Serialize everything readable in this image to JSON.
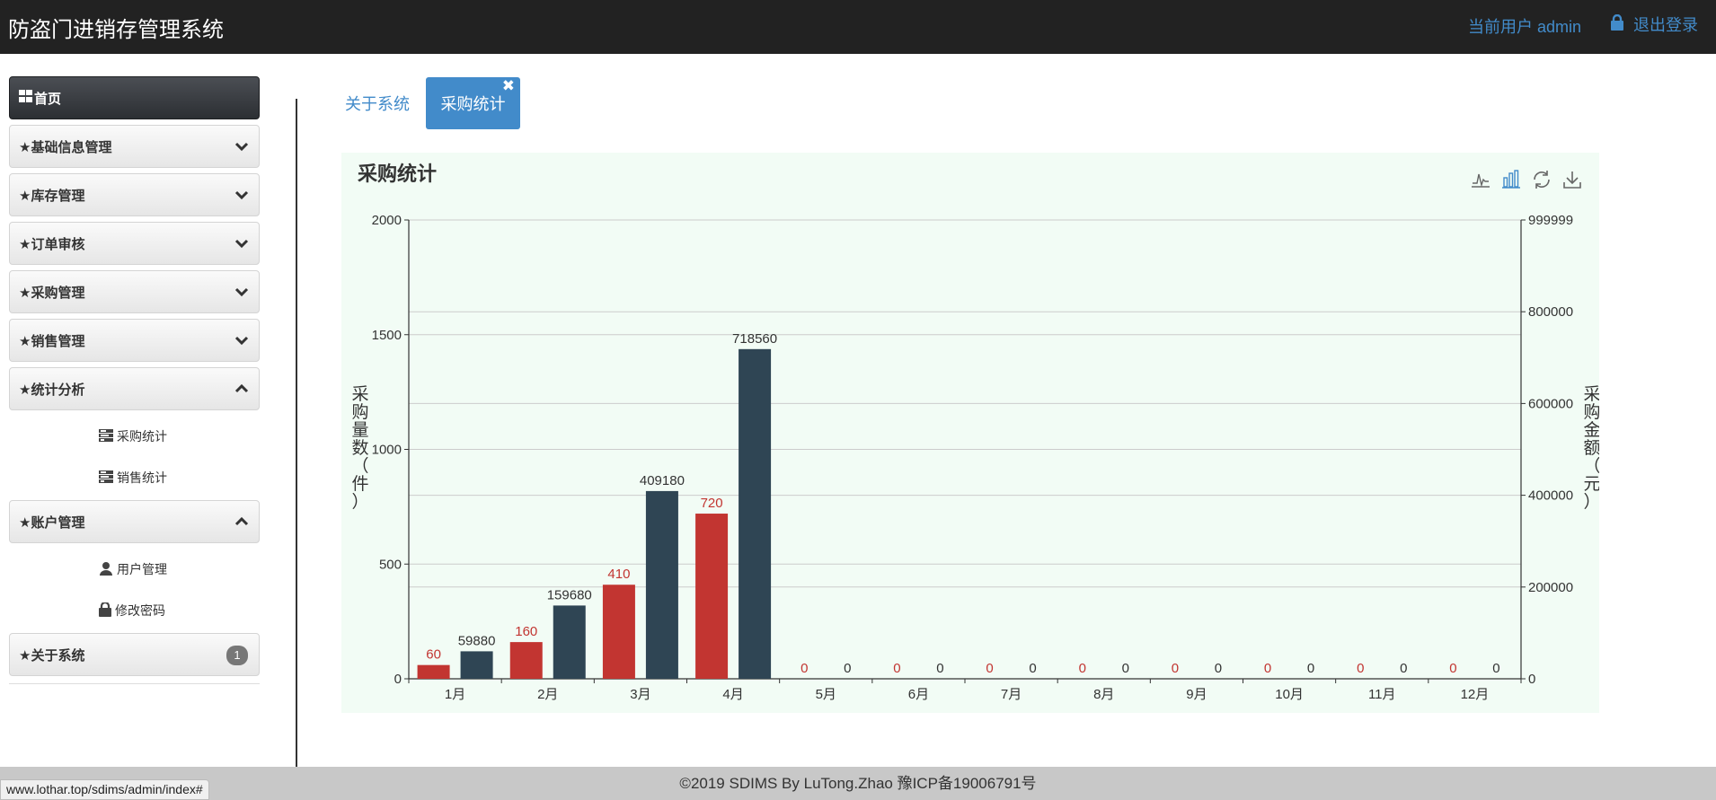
{
  "navbar": {
    "brand": "防盗门进销存管理系统",
    "current_user": "当前用户 admin",
    "logout": "退出登录"
  },
  "sidebar": {
    "items": [
      {
        "label": "首页",
        "active": true
      },
      {
        "label": "★基础信息管理"
      },
      {
        "label": "★库存管理"
      },
      {
        "label": "★订单审核"
      },
      {
        "label": "★采购管理"
      },
      {
        "label": "★销售管理"
      },
      {
        "label": "★统计分析",
        "expanded": true
      },
      {
        "label": "★账户管理",
        "expanded": true
      },
      {
        "label": "★关于系统",
        "badge": "1"
      }
    ],
    "stats_sub": [
      {
        "label": "采购统计",
        "icon": "tasks-icon"
      },
      {
        "label": "销售统计",
        "icon": "tasks-icon"
      }
    ],
    "account_sub": [
      {
        "label": "用户管理",
        "icon": "user-icon"
      },
      {
        "label": "修改密码",
        "icon": "lock-icon"
      }
    ]
  },
  "tabs": [
    {
      "label": "关于系统"
    },
    {
      "label": "采购统计",
      "active": true,
      "close": "✖"
    }
  ],
  "colors": {
    "qty_bar": "#c23531",
    "amount_bar": "#2f4554",
    "accent": "#428bca"
  },
  "chart_data": {
    "type": "bar",
    "title": "采购统计",
    "categories": [
      "1月",
      "2月",
      "3月",
      "4月",
      "5月",
      "6月",
      "7月",
      "8月",
      "9月",
      "10月",
      "11月",
      "12月"
    ],
    "ylabel_left": "采购量数（件）",
    "ylabel_right": "采购金额（元）",
    "ylim_left": [
      0,
      2000
    ],
    "ylim_right": [
      0,
      999999
    ],
    "yticks_left": [
      "0",
      "500",
      "1000",
      "1500",
      "2000"
    ],
    "yticks_right": [
      "0",
      "200000",
      "400000",
      "600000",
      "800000",
      "999999"
    ],
    "series": [
      {
        "axis": "left",
        "values": [
          60,
          160,
          410,
          720,
          0,
          0,
          0,
          0,
          0,
          0,
          0,
          0
        ]
      },
      {
        "axis": "right",
        "values": [
          59880,
          159680,
          409180,
          718560,
          0,
          0,
          0,
          0,
          0,
          0,
          0,
          0
        ]
      }
    ],
    "grid": true
  },
  "footer": "©2019 SDIMS By LuTong.Zhao 豫ICP备19006791号",
  "status_url": "www.lothar.top/sdims/admin/index#"
}
